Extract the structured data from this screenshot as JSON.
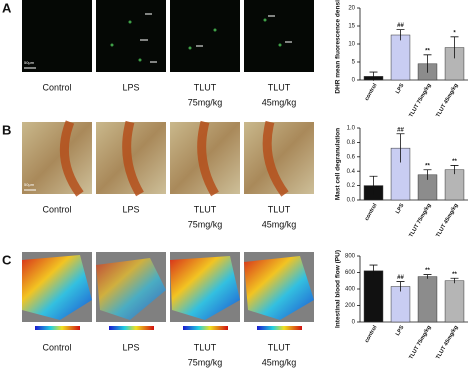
{
  "panels": [
    {
      "letter": "A",
      "scale_bar": "50μm",
      "image_labels": [
        [
          "Control"
        ],
        [
          "LPS"
        ],
        [
          "TLUT",
          "75mg/kg"
        ],
        [
          "TLUT",
          "45mg/kg"
        ]
      ]
    },
    {
      "letter": "B",
      "scale_bar": "50μm",
      "image_labels": [
        [
          "Control"
        ],
        [
          "LPS"
        ],
        [
          "TLUT",
          "75mg/kg"
        ],
        [
          "TLUT",
          "45mg/kg"
        ]
      ]
    },
    {
      "letter": "C",
      "image_labels": [
        [
          "Control"
        ],
        [
          "LPS"
        ],
        [
          "TLUT",
          "75mg/kg"
        ],
        [
          "TLUT",
          "45mg/kg"
        ]
      ]
    }
  ],
  "chart_data": [
    {
      "type": "bar",
      "y_label": "DHR mean fluorescence density",
      "categories": [
        "control",
        "LPS",
        "TLUT 75mg/kg",
        "TLUT 45mg/kg"
      ],
      "values": [
        1,
        12.5,
        4.5,
        9
      ],
      "errors": [
        1.2,
        1.5,
        2.5,
        3
      ],
      "annotations": [
        null,
        "##",
        "**",
        "*"
      ],
      "colors": [
        "#111111",
        "#c9cdf2",
        "#8c8c8c",
        "#b5b5b5"
      ],
      "ylim": [
        0,
        20
      ],
      "yticks": [
        0,
        5,
        10,
        15,
        20
      ]
    },
    {
      "type": "bar",
      "y_label": "Mast cell degranulation",
      "categories": [
        "control",
        "LPS",
        "TLUT 75mg/kg",
        "TLUT 45mg/kg"
      ],
      "values": [
        0.2,
        0.72,
        0.35,
        0.42
      ],
      "errors": [
        0.13,
        0.2,
        0.07,
        0.06
      ],
      "annotations": [
        null,
        "##",
        "**",
        "**"
      ],
      "colors": [
        "#111111",
        "#c9cdf2",
        "#8c8c8c",
        "#b5b5b5"
      ],
      "ylim": [
        0,
        1.0
      ],
      "yticks": [
        {
          "value": 0,
          "label": "0.0"
        },
        0.2,
        0.4,
        0.6,
        0.8,
        {
          "value": 1.0,
          "label": "1.0"
        }
      ]
    },
    {
      "type": "bar",
      "y_label": "Intestinal blood flow (PU)",
      "categories": [
        "control",
        "LPS",
        "TLUT 75mg/kg",
        "TLUT 45mg/kg"
      ],
      "values": [
        620,
        430,
        550,
        500
      ],
      "errors": [
        70,
        60,
        25,
        30
      ],
      "annotations": [
        null,
        "##",
        "**",
        "**"
      ],
      "colors": [
        "#111111",
        "#c9cdf2",
        "#8c8c8c",
        "#b5b5b5"
      ],
      "ylim": [
        0,
        800
      ],
      "yticks": [
        0,
        200,
        400,
        600,
        800
      ]
    }
  ]
}
